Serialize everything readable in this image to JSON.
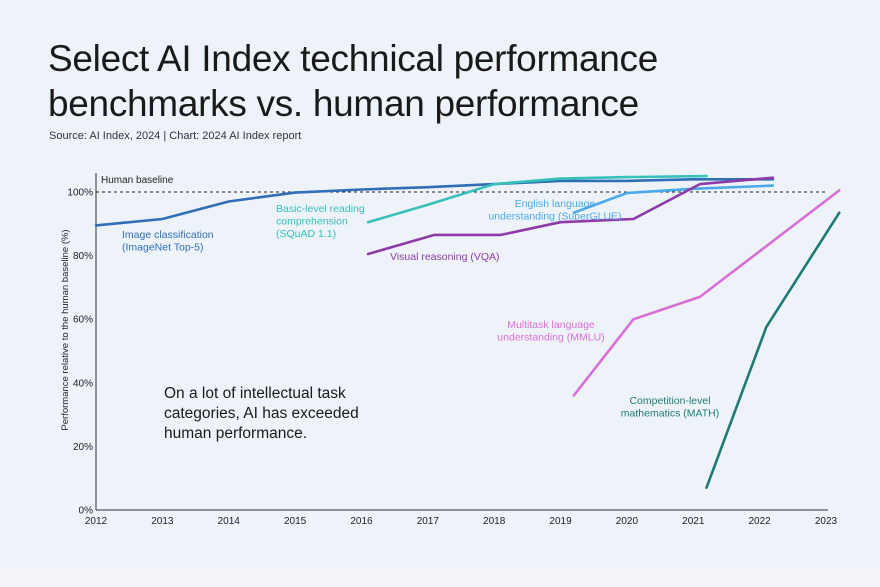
{
  "title_lines": [
    "Select AI Index technical performance",
    "benchmarks vs. human performance"
  ],
  "source": "Source: AI Index, 2024 | Chart: 2024 AI Index report",
  "chart_data": {
    "type": "line",
    "title": "Select AI Index technical performance benchmarks vs. human performance",
    "ylabel": "Performance relative to the human baseline (%)",
    "xlabel": "",
    "xlim": [
      2012,
      2023
    ],
    "ylim": [
      0,
      100
    ],
    "x_ticks": [
      "2012",
      "2013",
      "2014",
      "2015",
      "2016",
      "2017",
      "2018",
      "2019",
      "2020",
      "2021",
      "2022",
      "2023"
    ],
    "y_ticks": [
      {
        "value": 0,
        "label": "0%"
      },
      {
        "value": 20,
        "label": "20%"
      },
      {
        "value": 40,
        "label": "40%"
      },
      {
        "value": 60,
        "label": "60%"
      },
      {
        "value": 80,
        "label": "80%"
      },
      {
        "value": 100,
        "label": "100%"
      }
    ],
    "baseline": {
      "value": 100,
      "label": "Human baseline"
    },
    "grid": false,
    "series": [
      {
        "label_lines": [
          "Image classification",
          "(ImageNet Top-5)"
        ],
        "color": "#2e6fb5",
        "x": [
          2012,
          2013,
          2014,
          2015,
          2016,
          2017,
          2018,
          2019,
          2020,
          2021,
          2022.2
        ],
        "y": [
          89.5,
          91.5,
          97,
          99.8,
          100.8,
          101.5,
          102.5,
          103.5,
          103.5,
          104,
          104
        ]
      },
      {
        "label_lines": [
          "Basic-level reading",
          "comprehension",
          "(SQuAD 1.1)"
        ],
        "color": "#38c0bb",
        "x": [
          2016.1,
          2017,
          2018,
          2019,
          2020,
          2021.2
        ],
        "y": [
          90.5,
          96,
          102.5,
          104.2,
          104.7,
          105
        ]
      },
      {
        "label_lines": [
          "English language",
          "understanding (SuperGLUE)"
        ],
        "color": "#4aa9e8",
        "x": [
          2019.2,
          2020,
          2021,
          2022.2
        ],
        "y": [
          93.5,
          99.7,
          101,
          102
        ]
      },
      {
        "label_lines": [
          "Visual reasoning (VQA)"
        ],
        "color": "#8e3aa8",
        "x": [
          2016.1,
          2017.1,
          2018.1,
          2019,
          2020.1,
          2021.1,
          2022.2
        ],
        "y": [
          80.5,
          86.5,
          86.5,
          90.5,
          91.5,
          102.5,
          104.5
        ]
      },
      {
        "label_lines": [
          "Multitask language",
          "understanding (MMLU)"
        ],
        "color": "#d96fd6",
        "x": [
          2019.2,
          2020.1,
          2021.1,
          2023.2
        ],
        "y": [
          36,
          60,
          67,
          100.5
        ]
      },
      {
        "label_lines": [
          "Competition-level",
          "mathematics (MATH)"
        ],
        "color": "#1e7b74",
        "x": [
          2021.2,
          2022.1,
          2023.2
        ],
        "y": [
          7,
          57.5,
          93.5
        ]
      }
    ],
    "annotation": [
      "On a lot of intellectual task",
      "categories, AI has exceeded",
      "human performance."
    ]
  }
}
